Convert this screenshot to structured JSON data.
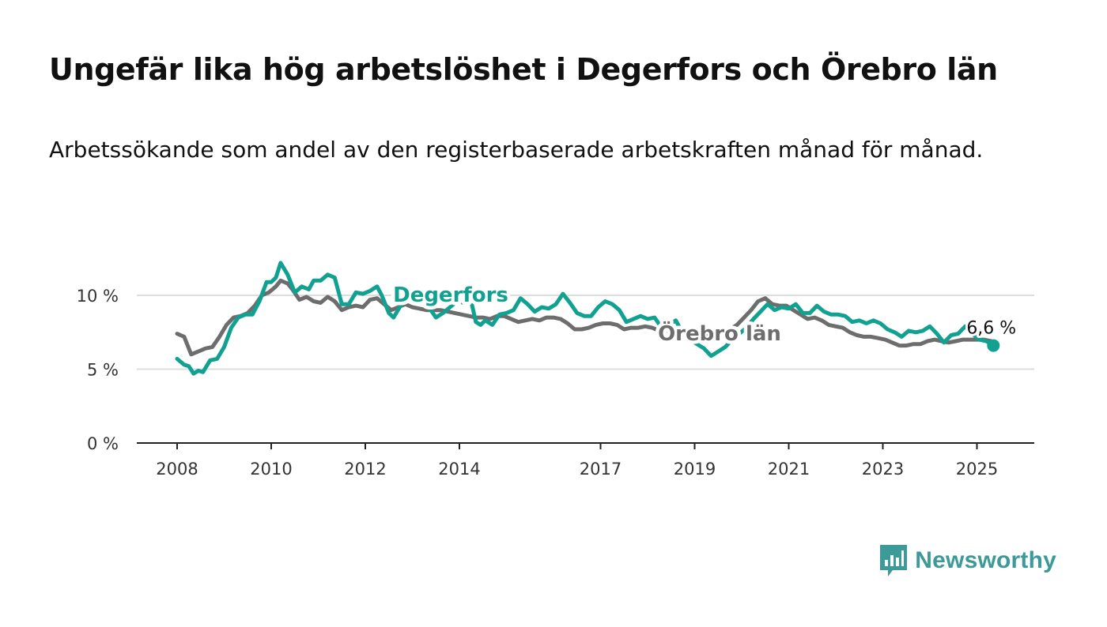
{
  "title": "Ungefär lika hög arbetslöshet i Degerfors och Örebro län",
  "subtitle": "Arbetssökande som andel av den registerbaserade arbetskraften månad för månad.",
  "brand": {
    "name": "Newsworthy",
    "color": "#3c9a98",
    "icon": "newsworthy-bar-chart-icon"
  },
  "colors": {
    "degerfors": "#11a191",
    "orebro": "#6d6d6d",
    "grid": "#dddddd",
    "axis": "#222222"
  },
  "chart_data": {
    "type": "line",
    "ylim": [
      0,
      12
    ],
    "xlim": [
      2008.0,
      2026.05
    ],
    "y_ticks": [
      {
        "value": 0,
        "label": "0 %"
      },
      {
        "value": 5,
        "label": "5 %"
      },
      {
        "value": 10,
        "label": "10 %"
      }
    ],
    "x_ticks": [
      {
        "value": 2008,
        "label": "2008"
      },
      {
        "value": 2010,
        "label": "2010"
      },
      {
        "value": 2012,
        "label": "2012"
      },
      {
        "value": 2014,
        "label": "2014"
      },
      {
        "value": 2017,
        "label": "2017"
      },
      {
        "value": 2019,
        "label": "2019"
      },
      {
        "value": 2021,
        "label": "2021"
      },
      {
        "value": 2023,
        "label": "2023"
      },
      {
        "value": 2025,
        "label": "2025"
      }
    ],
    "grid": true,
    "series": [
      {
        "name": "Degerfors",
        "key": "degerfors",
        "points": [
          [
            2008.0,
            5.7
          ],
          [
            2008.15,
            5.3
          ],
          [
            2008.25,
            5.2
          ],
          [
            2008.35,
            4.7
          ],
          [
            2008.45,
            4.9
          ],
          [
            2008.55,
            4.8
          ],
          [
            2008.7,
            5.6
          ],
          [
            2008.85,
            5.7
          ],
          [
            2009.0,
            6.5
          ],
          [
            2009.15,
            7.8
          ],
          [
            2009.3,
            8.5
          ],
          [
            2009.45,
            8.7
          ],
          [
            2009.6,
            8.7
          ],
          [
            2009.75,
            9.6
          ],
          [
            2009.9,
            10.9
          ],
          [
            2010.0,
            10.9
          ],
          [
            2010.1,
            11.2
          ],
          [
            2010.2,
            12.2
          ],
          [
            2010.35,
            11.4
          ],
          [
            2010.5,
            10.2
          ],
          [
            2010.65,
            10.6
          ],
          [
            2010.8,
            10.4
          ],
          [
            2010.9,
            11.0
          ],
          [
            2011.05,
            11.0
          ],
          [
            2011.2,
            11.4
          ],
          [
            2011.35,
            11.2
          ],
          [
            2011.5,
            9.4
          ],
          [
            2011.65,
            9.4
          ],
          [
            2011.8,
            10.2
          ],
          [
            2011.95,
            10.1
          ],
          [
            2012.1,
            10.3
          ],
          [
            2012.25,
            10.6
          ],
          [
            2012.35,
            10.0
          ],
          [
            2012.5,
            8.8
          ],
          [
            2012.6,
            8.5
          ],
          [
            2012.75,
            9.3
          ],
          [
            2012.9,
            9.9
          ],
          [
            2013.05,
            9.6
          ],
          [
            2013.2,
            9.7
          ],
          [
            2013.35,
            9.2
          ],
          [
            2013.5,
            8.5
          ],
          [
            2013.65,
            8.8
          ],
          [
            2013.8,
            9.2
          ],
          [
            2013.95,
            9.6
          ],
          [
            2014.1,
            9.5
          ],
          [
            2014.25,
            9.6
          ],
          [
            2014.35,
            8.2
          ],
          [
            2014.45,
            8.0
          ],
          [
            2014.55,
            8.3
          ],
          [
            2014.7,
            8.0
          ],
          [
            2014.85,
            8.7
          ],
          [
            2015.0,
            8.8
          ],
          [
            2015.15,
            9.0
          ],
          [
            2015.3,
            9.8
          ],
          [
            2015.45,
            9.4
          ],
          [
            2015.6,
            8.9
          ],
          [
            2015.75,
            9.2
          ],
          [
            2015.9,
            9.1
          ],
          [
            2016.05,
            9.4
          ],
          [
            2016.2,
            10.1
          ],
          [
            2016.35,
            9.5
          ],
          [
            2016.5,
            8.8
          ],
          [
            2016.65,
            8.6
          ],
          [
            2016.8,
            8.6
          ],
          [
            2016.95,
            9.2
          ],
          [
            2017.1,
            9.6
          ],
          [
            2017.25,
            9.4
          ],
          [
            2017.4,
            9.0
          ],
          [
            2017.55,
            8.2
          ],
          [
            2017.7,
            8.4
          ],
          [
            2017.85,
            8.6
          ],
          [
            2018.0,
            8.4
          ],
          [
            2018.15,
            8.5
          ],
          [
            2018.3,
            7.8
          ],
          [
            2018.45,
            8.0
          ],
          [
            2018.6,
            8.3
          ],
          [
            2018.75,
            7.4
          ],
          [
            2018.9,
            7.0
          ],
          [
            2019.05,
            6.7
          ],
          [
            2019.2,
            6.4
          ],
          [
            2019.35,
            5.9
          ],
          [
            2019.5,
            6.2
          ],
          [
            2019.65,
            6.5
          ],
          [
            2019.8,
            7.0
          ],
          [
            2019.95,
            7.4
          ],
          [
            2020.1,
            7.8
          ],
          [
            2020.25,
            8.4
          ],
          [
            2020.4,
            8.9
          ],
          [
            2020.55,
            9.4
          ],
          [
            2020.7,
            9.0
          ],
          [
            2020.85,
            9.2
          ],
          [
            2021.0,
            9.1
          ],
          [
            2021.15,
            9.4
          ],
          [
            2021.3,
            8.8
          ],
          [
            2021.45,
            8.8
          ],
          [
            2021.6,
            9.3
          ],
          [
            2021.75,
            8.9
          ],
          [
            2021.9,
            8.7
          ],
          [
            2022.05,
            8.7
          ],
          [
            2022.2,
            8.6
          ],
          [
            2022.35,
            8.2
          ],
          [
            2022.5,
            8.3
          ],
          [
            2022.65,
            8.1
          ],
          [
            2022.8,
            8.3
          ],
          [
            2022.95,
            8.1
          ],
          [
            2023.1,
            7.7
          ],
          [
            2023.25,
            7.5
          ],
          [
            2023.4,
            7.2
          ],
          [
            2023.55,
            7.6
          ],
          [
            2023.7,
            7.5
          ],
          [
            2023.85,
            7.6
          ],
          [
            2024.0,
            7.9
          ],
          [
            2024.15,
            7.4
          ],
          [
            2024.3,
            6.8
          ],
          [
            2024.45,
            7.3
          ],
          [
            2024.6,
            7.4
          ],
          [
            2024.75,
            7.9
          ],
          [
            2024.9,
            7.4
          ],
          [
            2025.05,
            7.0
          ],
          [
            2025.2,
            6.9
          ],
          [
            2025.35,
            6.6
          ]
        ]
      },
      {
        "name": "Örebro län",
        "key": "orebro",
        "points": [
          [
            2008.0,
            7.4
          ],
          [
            2008.15,
            7.2
          ],
          [
            2008.3,
            6.0
          ],
          [
            2008.45,
            6.2
          ],
          [
            2008.6,
            6.4
          ],
          [
            2008.75,
            6.5
          ],
          [
            2008.9,
            7.2
          ],
          [
            2009.05,
            8.0
          ],
          [
            2009.2,
            8.5
          ],
          [
            2009.35,
            8.6
          ],
          [
            2009.5,
            8.8
          ],
          [
            2009.65,
            9.3
          ],
          [
            2009.8,
            10.0
          ],
          [
            2009.95,
            10.2
          ],
          [
            2010.1,
            10.6
          ],
          [
            2010.2,
            11.0
          ],
          [
            2010.35,
            10.8
          ],
          [
            2010.45,
            10.4
          ],
          [
            2010.6,
            9.7
          ],
          [
            2010.75,
            9.9
          ],
          [
            2010.9,
            9.6
          ],
          [
            2011.05,
            9.5
          ],
          [
            2011.2,
            9.9
          ],
          [
            2011.35,
            9.6
          ],
          [
            2011.5,
            9.0
          ],
          [
            2011.65,
            9.2
          ],
          [
            2011.8,
            9.3
          ],
          [
            2011.95,
            9.2
          ],
          [
            2012.1,
            9.7
          ],
          [
            2012.25,
            9.8
          ],
          [
            2012.4,
            9.4
          ],
          [
            2012.55,
            9.0
          ],
          [
            2012.7,
            9.2
          ],
          [
            2012.85,
            9.4
          ],
          [
            2013.0,
            9.2
          ],
          [
            2013.15,
            9.1
          ],
          [
            2013.3,
            9.0
          ],
          [
            2013.45,
            9.0
          ],
          [
            2013.6,
            9.0
          ],
          [
            2013.75,
            8.9
          ],
          [
            2013.9,
            8.8
          ],
          [
            2014.05,
            8.7
          ],
          [
            2014.2,
            8.6
          ],
          [
            2014.35,
            8.5
          ],
          [
            2014.5,
            8.5
          ],
          [
            2014.65,
            8.4
          ],
          [
            2014.8,
            8.6
          ],
          [
            2014.95,
            8.6
          ],
          [
            2015.1,
            8.4
          ],
          [
            2015.25,
            8.2
          ],
          [
            2015.4,
            8.3
          ],
          [
            2015.55,
            8.4
          ],
          [
            2015.7,
            8.3
          ],
          [
            2015.85,
            8.5
          ],
          [
            2016.0,
            8.5
          ],
          [
            2016.15,
            8.4
          ],
          [
            2016.3,
            8.1
          ],
          [
            2016.45,
            7.7
          ],
          [
            2016.6,
            7.7
          ],
          [
            2016.75,
            7.8
          ],
          [
            2016.9,
            8.0
          ],
          [
            2017.05,
            8.1
          ],
          [
            2017.2,
            8.1
          ],
          [
            2017.35,
            8.0
          ],
          [
            2017.5,
            7.7
          ],
          [
            2017.65,
            7.8
          ],
          [
            2017.8,
            7.8
          ],
          [
            2017.95,
            7.9
          ],
          [
            2018.1,
            7.8
          ],
          [
            2018.25,
            7.6
          ],
          [
            2018.4,
            7.6
          ],
          [
            2018.55,
            7.5
          ],
          [
            2018.7,
            7.4
          ],
          [
            2018.85,
            7.3
          ],
          [
            2019.0,
            7.2
          ],
          [
            2019.15,
            7.3
          ],
          [
            2019.3,
            7.4
          ],
          [
            2019.45,
            7.5
          ],
          [
            2019.6,
            7.6
          ],
          [
            2019.75,
            7.7
          ],
          [
            2019.9,
            8.0
          ],
          [
            2020.05,
            8.5
          ],
          [
            2020.2,
            9.0
          ],
          [
            2020.35,
            9.6
          ],
          [
            2020.5,
            9.8
          ],
          [
            2020.65,
            9.4
          ],
          [
            2020.8,
            9.3
          ],
          [
            2020.95,
            9.3
          ],
          [
            2021.1,
            9.0
          ],
          [
            2021.25,
            8.7
          ],
          [
            2021.4,
            8.4
          ],
          [
            2021.55,
            8.5
          ],
          [
            2021.7,
            8.3
          ],
          [
            2021.85,
            8.0
          ],
          [
            2022.0,
            7.9
          ],
          [
            2022.15,
            7.8
          ],
          [
            2022.3,
            7.5
          ],
          [
            2022.45,
            7.3
          ],
          [
            2022.6,
            7.2
          ],
          [
            2022.75,
            7.2
          ],
          [
            2022.9,
            7.1
          ],
          [
            2023.05,
            7.0
          ],
          [
            2023.2,
            6.8
          ],
          [
            2023.35,
            6.6
          ],
          [
            2023.5,
            6.6
          ],
          [
            2023.65,
            6.7
          ],
          [
            2023.8,
            6.7
          ],
          [
            2023.95,
            6.9
          ],
          [
            2024.1,
            7.0
          ],
          [
            2024.25,
            6.9
          ],
          [
            2024.4,
            6.8
          ],
          [
            2024.55,
            6.9
          ],
          [
            2024.7,
            7.0
          ],
          [
            2024.85,
            7.0
          ],
          [
            2025.0,
            7.0
          ],
          [
            2025.15,
            7.0
          ],
          [
            2025.3,
            6.9
          ]
        ]
      }
    ],
    "end_label": "6,6 %"
  }
}
